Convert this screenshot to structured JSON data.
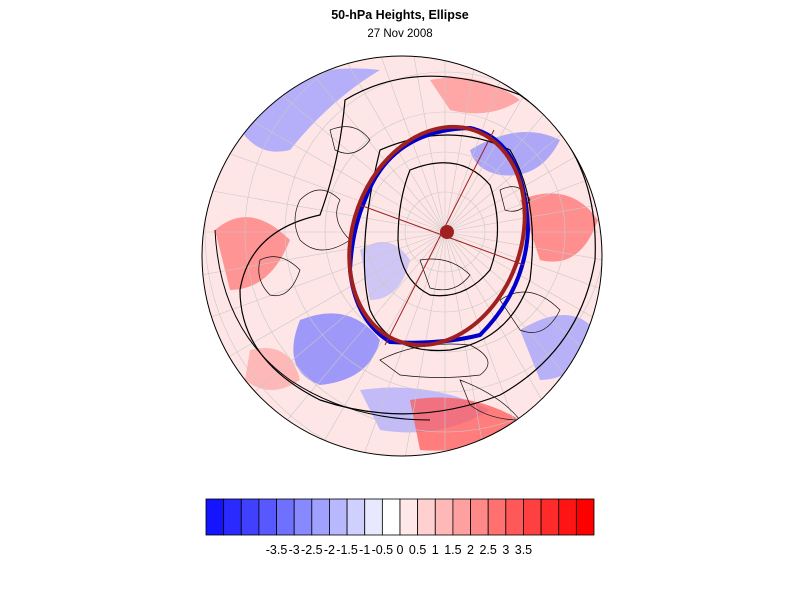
{
  "title": "50-hPa Heights, Ellipse",
  "subtitle": "27 Nov 2008",
  "colorbar": {
    "labels": [
      "-3.5",
      "-3",
      "-2.5",
      "-2",
      "-1.5",
      "-1",
      "-0.5",
      "0",
      "0.5",
      "1",
      "1.5",
      "2",
      "2.5",
      "3",
      "3.5"
    ],
    "colors": [
      "#1414ff",
      "#2a2aff",
      "#4040ff",
      "#5858ff",
      "#7070ff",
      "#8888ff",
      "#a0a0ff",
      "#b8b8ff",
      "#d0d0ff",
      "#e8e8ff",
      "#ffffff",
      "#ffe8e8",
      "#ffd0d0",
      "#ffb8b8",
      "#ffa0a0",
      "#ff8888",
      "#ff7070",
      "#ff5858",
      "#ff4040",
      "#ff2a2a",
      "#ff1414",
      "#ff0000"
    ]
  },
  "colors": {
    "ellipse_fit": "#a02020",
    "vortex_edge": "#0000cc",
    "contour": "#000000",
    "coast": "#000000"
  },
  "map": {
    "projection": "orthographic-polar",
    "hemisphere": "Northern"
  }
}
